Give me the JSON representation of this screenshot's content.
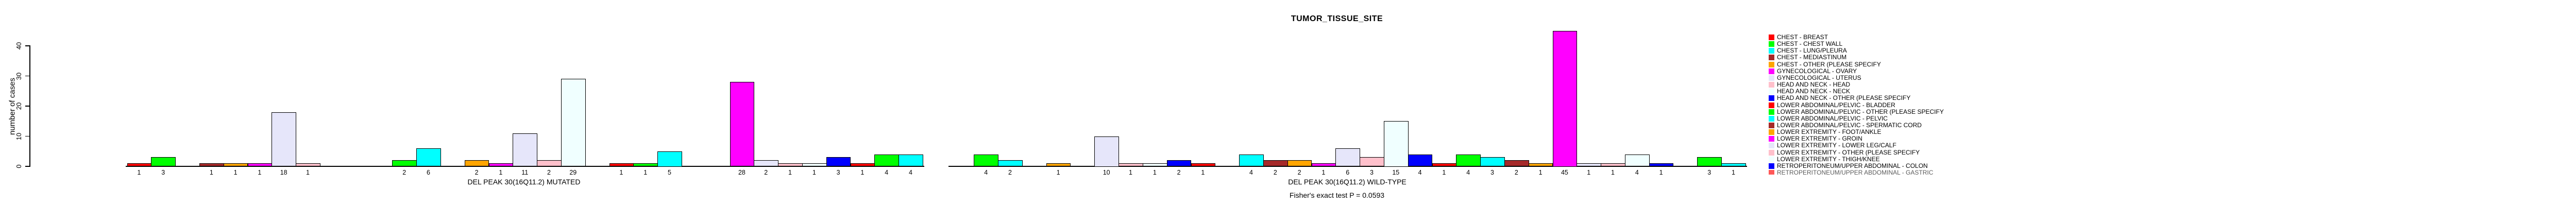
{
  "chart_data": {
    "type": "bar",
    "title": "TUMOR_TISSUE_SITE",
    "ylabel": "number of cases",
    "ylim": [
      0,
      40
    ],
    "yticks": [
      0,
      10,
      20,
      30,
      40
    ],
    "grid": false,
    "legend_position": "right",
    "n_slots_per_panel": 33,
    "color_cycle": [
      "#FF0000",
      "#00FF00",
      "#00FFFF",
      "#A52A2A",
      "#FFA500",
      "#FF00FF",
      "#E6E6FA",
      "#FFC0CB",
      "#F0FFFF",
      "#0000FF"
    ],
    "panels": [
      {
        "label": "DEL PEAK 30(16Q11.2) MUTATED",
        "values": [
          1,
          3,
          0,
          1,
          1,
          1,
          18,
          1,
          0,
          0,
          0,
          2,
          6,
          0,
          2,
          1,
          11,
          2,
          29,
          0,
          1,
          1,
          5,
          0,
          0,
          28,
          2,
          1,
          1,
          3,
          1,
          4,
          4
        ]
      },
      {
        "label": "DEL PEAK 30(16Q11.2) WILD-TYPE",
        "values": [
          0,
          4,
          2,
          0,
          1,
          0,
          10,
          1,
          1,
          2,
          1,
          0,
          4,
          2,
          2,
          1,
          6,
          3,
          15,
          4,
          1,
          4,
          3,
          2,
          1,
          45,
          1,
          1,
          4,
          1,
          0,
          3,
          1
        ]
      }
    ],
    "annotation": "Fisher's exact test P = 0.0593",
    "legend_entries": [
      {
        "label": "CHEST - BREAST",
        "color": "#FF0000",
        "clipped": false
      },
      {
        "label": "CHEST - CHEST WALL",
        "color": "#00FF00",
        "clipped": false
      },
      {
        "label": "CHEST - LUNG/PLEURA",
        "color": "#00FFFF",
        "clipped": false
      },
      {
        "label": "CHEST - MEDIASTINUM",
        "color": "#A52A2A",
        "clipped": false
      },
      {
        "label": "CHEST - OTHER (PLEASE SPECIFY",
        "color": "#FFA500",
        "clipped": false
      },
      {
        "label": "GYNECOLOGICAL - OVARY",
        "color": "#FF00FF",
        "clipped": false
      },
      {
        "label": "GYNECOLOGICAL - UTERUS",
        "color": "#E6E6FA",
        "clipped": false
      },
      {
        "label": "HEAD AND NECK - HEAD",
        "color": "#FFC0CB",
        "clipped": false
      },
      {
        "label": "HEAD AND NECK - NECK",
        "color": "#F0FFFF",
        "clipped": false
      },
      {
        "label": "HEAD AND NECK - OTHER (PLEASE SPECIFY",
        "color": "#0000FF",
        "clipped": false
      },
      {
        "label": "LOWER ABDOMINAL/PELVIC - BLADDER",
        "color": "#FF0000",
        "clipped": false
      },
      {
        "label": "LOWER ABDOMINAL/PELVIC - OTHER (PLEASE SPECIFY",
        "color": "#00FF00",
        "clipped": false
      },
      {
        "label": "LOWER ABDOMINAL/PELVIC - PELVIC",
        "color": "#00FFFF",
        "clipped": false
      },
      {
        "label": "LOWER ABDOMINAL/PELVIC - SPERMATIC CORD",
        "color": "#A52A2A",
        "clipped": false
      },
      {
        "label": "LOWER EXTREMITY - FOOT/ANKLE",
        "color": "#FFA500",
        "clipped": false
      },
      {
        "label": "LOWER EXTREMITY - GROIN",
        "color": "#FF00FF",
        "clipped": false
      },
      {
        "label": "LOWER EXTREMITY - LOWER LEG/CALF",
        "color": "#E6E6FA",
        "clipped": false
      },
      {
        "label": "LOWER EXTREMITY - OTHER (PLEASE SPECIFY",
        "color": "#FFC0CB",
        "clipped": false
      },
      {
        "label": "LOWER EXTREMITY - THIGH/KNEE",
        "color": "#F0FFFF",
        "clipped": false
      },
      {
        "label": "RETROPERITONEUM/UPPER ABDOMINAL - COLON",
        "color": "#0000FF",
        "clipped": false
      },
      {
        "label": "RETROPERITONEUM/UPPER ABDOMINAL - GASTRIC",
        "color": "#FF0000",
        "clipped": true
      }
    ]
  }
}
